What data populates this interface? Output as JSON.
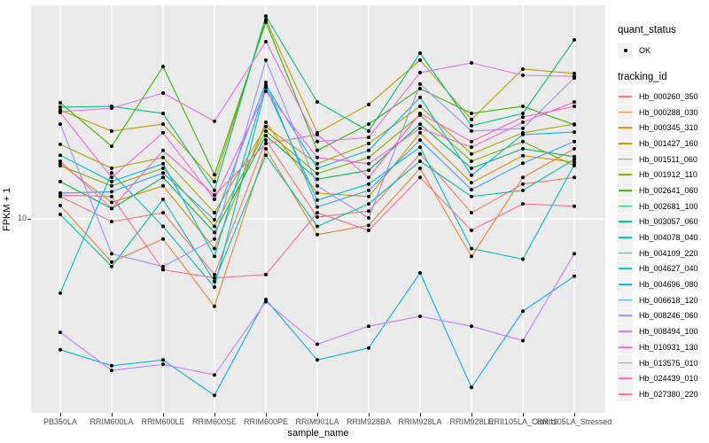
{
  "figure": {
    "y_axis": {
      "title": "FPKM + 1",
      "tick_labels": [
        "10"
      ]
    },
    "x_axis": {
      "title": "sample_name"
    },
    "legend": {
      "quant_status": {
        "title": "quant_status",
        "items": [
          {
            "label": "OK",
            "marker": "black-point"
          }
        ]
      },
      "tracking_id": {
        "title": "tracking_id"
      }
    }
  },
  "colors": {
    "panel_background": "#EBEBEB",
    "gridline": "#FFFFFF",
    "axis_text": "#4D4D4D",
    "legend_key_background": "#F2F2F2",
    "point": "#000000"
  },
  "chart_data": {
    "type": "line",
    "xlabel": "sample_name",
    "ylabel": "FPKM + 1",
    "y_scale": "log10",
    "y_ticks": [
      10
    ],
    "ylim": [
      1.3,
      110
    ],
    "grid": true,
    "legend_position": "right",
    "point_color": "#000000",
    "x": [
      "PB350LA",
      "RRIM600LA",
      "RRIM600LE",
      "RRIM600SE",
      "RRIM600PE",
      "RRIM901LA",
      "RRIM928BA",
      "RRIM928LA",
      "RRIM928LE",
      "RRII105LA_Control",
      "RRII105LA_Stressed"
    ],
    "series": [
      {
        "name": "Hb_000260_350",
        "color": "#F8766D",
        "values": [
          12.8,
          9.7,
          10.7,
          5.4,
          23.9,
          10.2,
          10.9,
          20.5,
          10.7,
          14.7,
          15.8
        ]
      },
      {
        "name": "Hb_000288_030",
        "color": "#EA8331",
        "values": [
          11.6,
          6.2,
          8.0,
          3.8,
          21.7,
          8.4,
          9.3,
          17.5,
          6.6,
          15.8,
          21.7
        ]
      },
      {
        "name": "Hb_000345_310",
        "color": "#D89000",
        "values": [
          18.4,
          12.0,
          14.4,
          7.2,
          29.1,
          13.3,
          12.8,
          25.9,
          14.9,
          20.1,
          18.7
        ]
      },
      {
        "name": "Hb_001427_160",
        "color": "#C09B00",
        "values": [
          33.3,
          26.4,
          28.5,
          15.1,
          90.6,
          25.9,
          35.4,
          57.8,
          30.0,
          52.4,
          49.9
        ]
      },
      {
        "name": "Hb_001511_060",
        "color": "#A3A500",
        "values": [
          22.8,
          17.5,
          19.7,
          10.7,
          27.7,
          18.4,
          23.0,
          34.7,
          20.5,
          25.9,
          28.5
        ]
      },
      {
        "name": "Hb_001912_110",
        "color": "#7CAE00",
        "values": [
          18.0,
          14.4,
          17.5,
          9.2,
          26.4,
          16.5,
          19.7,
          31.5,
          18.9,
          23.5,
          18.0
        ]
      },
      {
        "name": "Hb_002641_060",
        "color": "#39B600",
        "values": [
          36.1,
          22.3,
          53.9,
          16.3,
          88.1,
          21.3,
          28.5,
          42.2,
          32.1,
          34.7,
          28.3
        ]
      },
      {
        "name": "Hb_002681_100",
        "color": "#00BB4E",
        "values": [
          15.1,
          11.2,
          15.8,
          8.6,
          25.1,
          15.5,
          17.1,
          28.5,
          17.5,
          21.7,
          19.9
        ]
      },
      {
        "name": "Hb_003057_060",
        "color": "#00BF7D",
        "values": [
          34.4,
          34.7,
          32.1,
          13.7,
          94.2,
          36.4,
          26.4,
          62.5,
          28.0,
          32.1,
          72.4
        ]
      },
      {
        "name": "Hb_004078_040",
        "color": "#00C1A3",
        "values": [
          10.5,
          5.9,
          12.4,
          5.0,
          20.2,
          9.2,
          11.8,
          18.9,
          12.8,
          13.7,
          19.3
        ]
      },
      {
        "name": "Hb_004109_220",
        "color": "#00BFC4",
        "values": [
          4.4,
          16.6,
          9.2,
          4.7,
          42.7,
          12.3,
          14.7,
          22.1,
          7.2,
          6.4,
          18.2
        ]
      },
      {
        "name": "Hb_004627_040",
        "color": "#00BAE0",
        "values": [
          20.2,
          15.1,
          18.4,
          6.6,
          43.9,
          17.5,
          21.3,
          38.3,
          16.2,
          25.4,
          26.1
        ]
      },
      {
        "name": "Hb_004696_080",
        "color": "#00B0F6",
        "values": [
          2.35,
          1.97,
          2.1,
          1.42,
          4.1,
          2.1,
          2.4,
          5.5,
          1.55,
          3.6,
          5.3
        ]
      },
      {
        "name": "Hb_006618_120",
        "color": "#35A2FF",
        "values": [
          13.3,
          13.5,
          16.6,
          9.9,
          45.2,
          11.4,
          13.7,
          23.9,
          13.8,
          18.5,
          23.5
        ]
      },
      {
        "name": "Hb_008246_060",
        "color": "#9590FF",
        "values": [
          28.5,
          6.8,
          5.9,
          8.0,
          57.8,
          14.4,
          10.1,
          44.4,
          26.4,
          27.2,
          47.5
        ]
      },
      {
        "name": "Hb_008494_100",
        "color": "#C77CFF",
        "values": [
          2.85,
          1.87,
          2.0,
          1.78,
          4.0,
          2.5,
          3.05,
          3.4,
          3.05,
          2.6,
          6.8
        ]
      },
      {
        "name": "Hb_010931_130",
        "color": "#E76BF3",
        "values": [
          32.7,
          34.0,
          40.2,
          29.4,
          71.0,
          23.5,
          24.6,
          50.4,
          56.1,
          48.9,
          48.4
        ]
      },
      {
        "name": "Hb_013575_010",
        "color": "#FA62DB",
        "values": [
          32.4,
          15.8,
          25.9,
          12.4,
          41.0,
          19.7,
          18.4,
          27.2,
          22.1,
          29.1,
          36.4
        ]
      },
      {
        "name": "Hb_024439_010",
        "color": "#FF62BC",
        "values": [
          18.9,
          11.2,
          21.3,
          13.0,
          23.0,
          25.4,
          15.8,
          32.1,
          23.5,
          30.8,
          34.7
        ]
      },
      {
        "name": "Hb_027380_220",
        "color": "#FF6A98",
        "values": [
          13.0,
          12.8,
          5.7,
          5.2,
          5.4,
          10.7,
          8.8,
          15.8,
          8.8,
          11.8,
          11.5
        ]
      }
    ]
  }
}
